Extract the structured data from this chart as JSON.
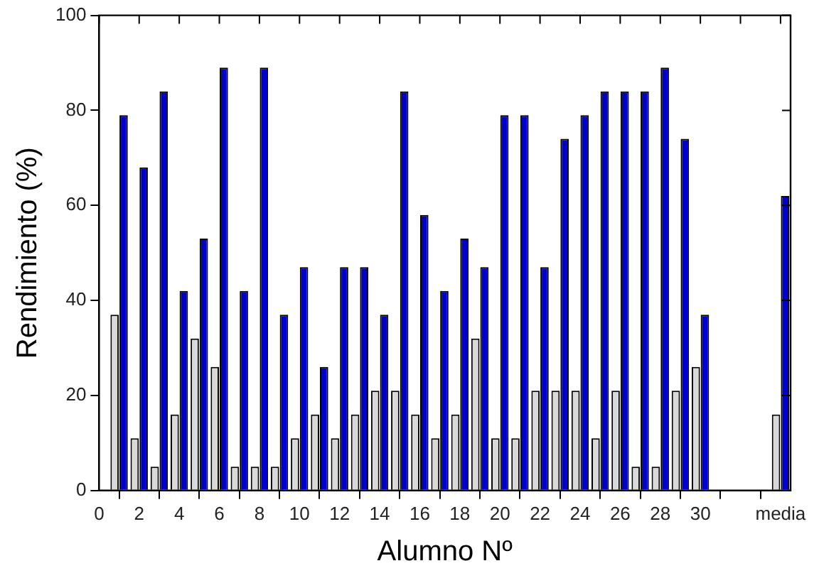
{
  "chart_data": {
    "type": "bar",
    "xlabel": "Alumno Nº",
    "ylabel": "Rendimiento (%)",
    "x": [
      1,
      2,
      3,
      4,
      5,
      6,
      7,
      8,
      9,
      10,
      11,
      12,
      13,
      14,
      15,
      16,
      17,
      18,
      19,
      20,
      21,
      22,
      23,
      24,
      25,
      26,
      27,
      28,
      29,
      30,
      34
    ],
    "series": [
      {
        "color": "#d9d9d9",
        "values": [
          37,
          11,
          5,
          16,
          32,
          26,
          5,
          5,
          5,
          11,
          16,
          11,
          16,
          21,
          21,
          16,
          11,
          16,
          32,
          11,
          11,
          21,
          21,
          21,
          11,
          21,
          5,
          5,
          21,
          26,
          16
        ]
      },
      {
        "color": "#0000cc",
        "values": [
          79,
          68,
          84,
          42,
          53,
          89,
          42,
          89,
          37,
          47,
          26,
          47,
          47,
          37,
          84,
          58,
          42,
          53,
          47,
          79,
          79,
          47,
          74,
          79,
          84,
          84,
          84,
          89,
          74,
          37,
          62
        ]
      }
    ],
    "xlim": [
      0,
      34.5
    ],
    "xticks": [
      0,
      2,
      4,
      6,
      8,
      10,
      12,
      14,
      16,
      18,
      20,
      22,
      24,
      26,
      28,
      30,
      {
        "value": 32,
        "label": null
      },
      {
        "value": 34,
        "label": "media"
      }
    ],
    "ylim": [
      0,
      100
    ],
    "yticks": [
      0,
      20,
      40,
      60,
      80,
      100
    ],
    "grid": false,
    "legend": false
  }
}
